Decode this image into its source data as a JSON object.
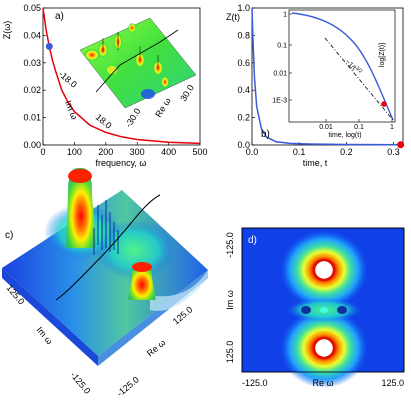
{
  "chart_data": [
    {
      "type": "line",
      "panel": "a)",
      "ylabel": "Z(ω)",
      "xlabel": "frequency, ω",
      "xlim": [
        0,
        500
      ],
      "ylim": [
        0,
        0.05
      ],
      "xticks": [
        "0",
        "100",
        "200",
        "300",
        "400",
        "500"
      ],
      "yticks": [
        "0.00",
        "0.01",
        "0.02",
        "0.03",
        "0.04",
        "0.05"
      ],
      "series": [
        {
          "color": "#e8000b",
          "x": [
            0,
            5,
            10,
            15,
            20,
            30,
            40,
            60,
            80,
            100,
            150,
            200,
            250,
            300,
            400,
            500
          ],
          "y": [
            0.05,
            0.046,
            0.042,
            0.039,
            0.036,
            0.031,
            0.027,
            0.02,
            0.0155,
            0.0122,
            0.0072,
            0.0046,
            0.003,
            0.002,
            0.001,
            0.0006
          ]
        }
      ],
      "marker": {
        "x": 20,
        "y": 0.036,
        "color": "#3a5bd9"
      },
      "inset": {
        "type": "surface",
        "labels": {
          "im_axis": "Im ω",
          "re_axis": "Re ω",
          "im_ticks": [
            "-18.0",
            "18.0"
          ],
          "re_ticks": [
            "-30.0",
            "30.0"
          ]
        }
      }
    },
    {
      "type": "line",
      "panel": "b)",
      "ylabel": "Z(t)",
      "xlabel": "time, t",
      "xlim": [
        0,
        0.32
      ],
      "ylim": [
        0,
        1.0
      ],
      "xticks": [
        "0.0",
        "0.1",
        "0.2",
        "0.3"
      ],
      "yticks": [
        "0.0",
        "0.2",
        "0.4",
        "0.6",
        "0.8",
        "1.0"
      ],
      "series": [
        {
          "color": "#3a5bd9",
          "x": [
            0,
            0.002,
            0.005,
            0.01,
            0.02,
            0.03,
            0.05,
            0.08,
            0.12,
            0.2,
            0.32
          ],
          "y": [
            1.0,
            0.78,
            0.5,
            0.28,
            0.12,
            0.06,
            0.025,
            0.012,
            0.007,
            0.004,
            0.002
          ]
        }
      ],
      "marker": {
        "x": 0.315,
        "y": 0.002,
        "color": "#e8000b"
      },
      "inset": {
        "type": "line",
        "xlabel": "time, log(t)",
        "ylabel": "log[Z(t)]",
        "xticks": [
          "0.01",
          "0.1",
          "1"
        ],
        "yticks": [
          "1",
          "0.1",
          "0.01",
          "1E-3"
        ],
        "annotation": "~1/t",
        "annotation_sup": "3/2"
      }
    },
    {
      "type": "surface",
      "panel": "c)",
      "labels": {
        "im_axis": "Im ω",
        "re_axis": "Re ω",
        "im_ticks": [
          "125.0",
          "-125.0"
        ],
        "re_ticks": [
          "-125.0",
          "125.0"
        ]
      }
    },
    {
      "type": "heatmap",
      "panel": "d)",
      "ylabel": "Im ω",
      "xlabel": "Re ω",
      "xticks": [
        "-125.0",
        "125.0"
      ],
      "yticks": [
        "-125.0",
        "125.0"
      ]
    }
  ]
}
